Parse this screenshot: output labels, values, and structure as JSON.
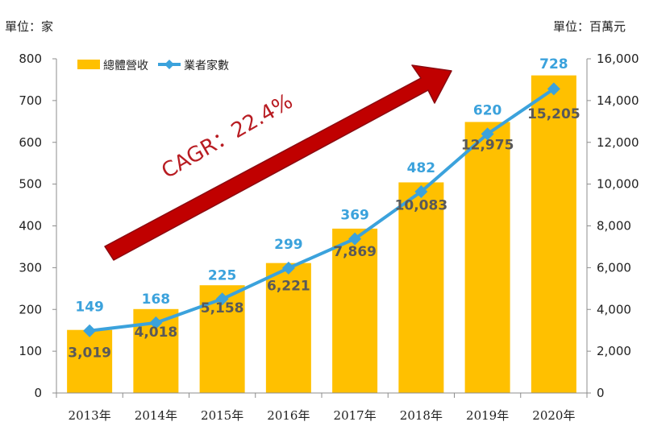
{
  "units": {
    "left": "單位：家",
    "right": "單位：百萬元"
  },
  "annotation": "CAGR：22.4%",
  "chart_data": {
    "type": "bar",
    "categories": [
      "2013年",
      "2014年",
      "2015年",
      "2016年",
      "2017年",
      "2018年",
      "2019年",
      "2020年"
    ],
    "series": [
      {
        "name": "總體營收",
        "kind": "bar",
        "axis": "right",
        "color": "#ffc000",
        "values": [
          3019,
          4018,
          5158,
          6221,
          7869,
          10083,
          12975,
          15205
        ],
        "labels": [
          "3,019",
          "4,018",
          "5,158",
          "6,221",
          "7,869",
          "10,083",
          "12,975",
          "15,205"
        ]
      },
      {
        "name": "業者家數",
        "kind": "line",
        "axis": "left",
        "color": "#3ba2dc",
        "values": [
          149,
          168,
          225,
          299,
          369,
          482,
          620,
          728
        ],
        "labels": [
          "149",
          "168",
          "225",
          "299",
          "369",
          "482",
          "620",
          "728"
        ]
      }
    ],
    "y_left": {
      "range": [
        0,
        800
      ],
      "ticks": [
        "0",
        "100",
        "200",
        "300",
        "400",
        "500",
        "600",
        "700",
        "800"
      ]
    },
    "y_right": {
      "range": [
        0,
        16000
      ],
      "ticks": [
        "0",
        "2,000",
        "4,000",
        "6,000",
        "8,000",
        "10,000",
        "12,000",
        "14,000",
        "16,000"
      ]
    },
    "legend_position": "top-left",
    "grid": false
  }
}
